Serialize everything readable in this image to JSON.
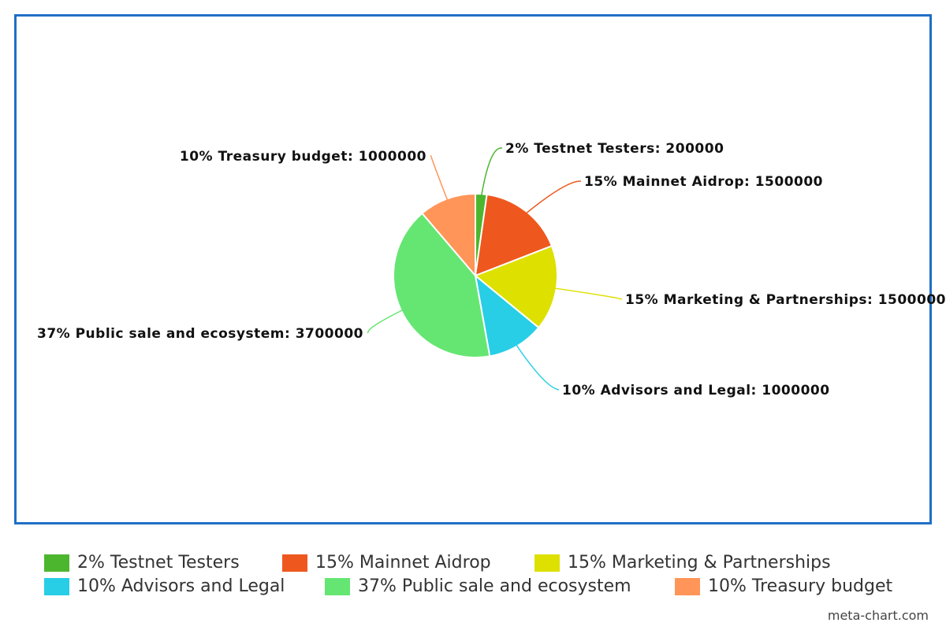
{
  "chart_data": {
    "type": "pie",
    "slices": [
      {
        "label": "2% Testnet Testers",
        "value": 200000,
        "percent": 2,
        "color": "#4cb62f",
        "slice_label": "2% Testnet Testers: 200000"
      },
      {
        "label": "15% Mainnet Aidrop",
        "value": 1500000,
        "percent": 15,
        "color": "#ee581e",
        "slice_label": "15% Mainnet Aidrop: 1500000"
      },
      {
        "label": "15% Marketing & Partnerships",
        "value": 1500000,
        "percent": 15,
        "color": "#dee000",
        "slice_label": "15% Marketing & Partnerships: 1500000"
      },
      {
        "label": "10% Advisors and Legal",
        "value": 1000000,
        "percent": 10,
        "color": "#27cee6",
        "slice_label": "10% Advisors and Legal: 1000000"
      },
      {
        "label": "37% Public sale and ecosystem",
        "value": 3700000,
        "percent": 37,
        "color": "#65e673",
        "slice_label": "37% Public sale and ecosystem: 3700000"
      },
      {
        "label": "10% Treasury budget",
        "value": 1000000,
        "percent": 10,
        "color": "#ff9558",
        "slice_label": "10% Treasury budget: 1000000"
      }
    ],
    "legend_placement": "bottom",
    "frame_color": "#1f6fc5"
  },
  "watermark": "meta-chart.com"
}
